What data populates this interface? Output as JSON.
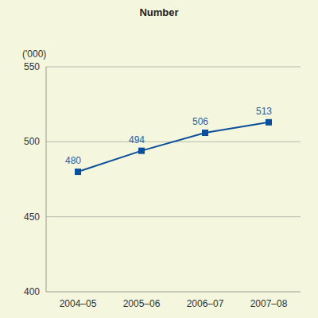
{
  "chart_data": {
    "type": "line",
    "title": "Number",
    "ylabel": "('000)",
    "categories": [
      "2004–05",
      "2005–06",
      "2006–07",
      "2007–08"
    ],
    "values": [
      480,
      494,
      506,
      513
    ],
    "color": "#0b4f9c",
    "marker": "square",
    "ylim": [
      400,
      550
    ],
    "yticks": [
      400,
      450,
      500,
      550
    ],
    "grid": true,
    "data_labels": true
  }
}
